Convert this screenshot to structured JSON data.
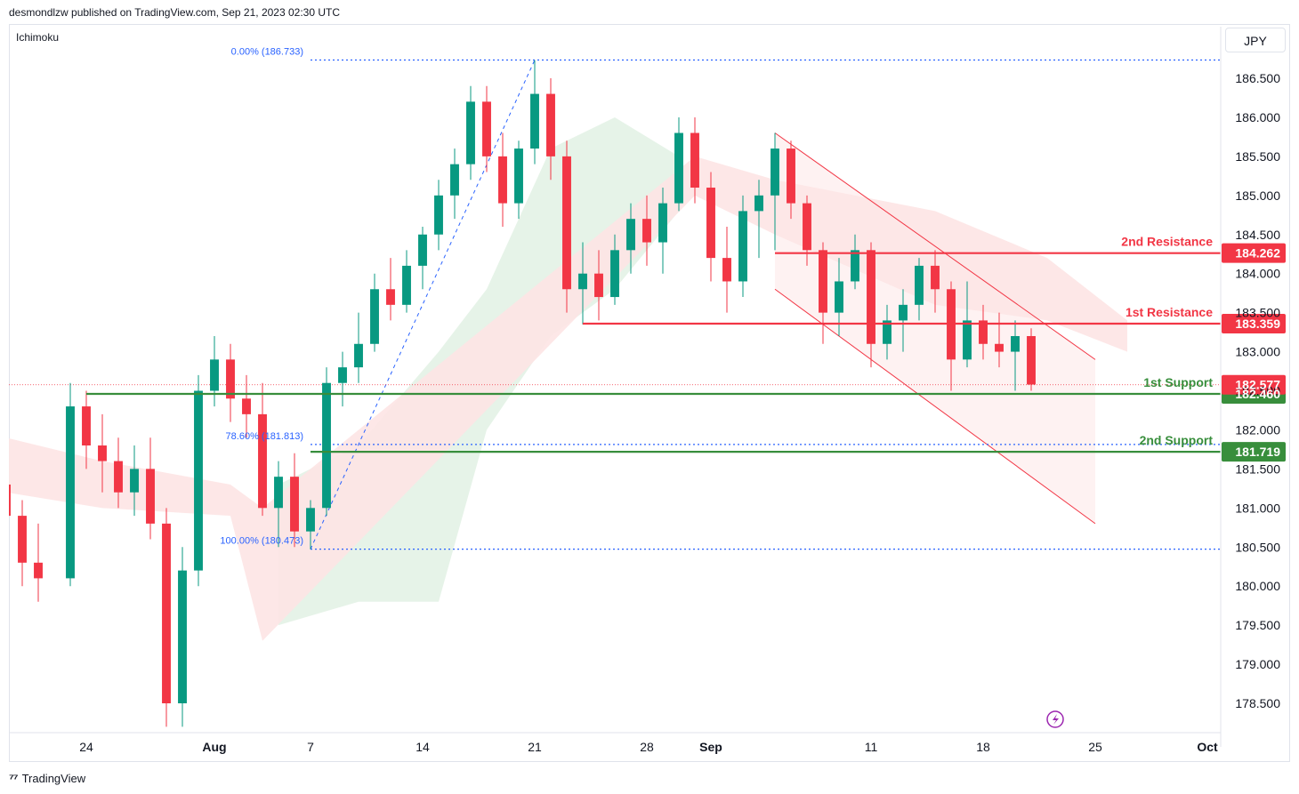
{
  "header": {
    "attribution": "desmondlzw published on TradingView.com, Sep 21, 2023 02:30 UTC"
  },
  "footer": {
    "brand": "TradingView",
    "logo": "tv-logo-icon"
  },
  "indicator_label": "Ichimoku",
  "currency": "JPY",
  "colors": {
    "up": "#089981",
    "down": "#f23645",
    "resistance": "#f23645",
    "support": "#388e3c",
    "fib": "#2962ff",
    "cloud_bull": "#e3f2e6",
    "cloud_bear": "#fde4e4",
    "channel": "#f23645"
  },
  "chart_data": {
    "type": "candlestick",
    "ylim": [
      178.0,
      186.9
    ],
    "y_ticks": [
      "186.500",
      "186.000",
      "185.500",
      "185.000",
      "184.500",
      "184.000",
      "183.500",
      "183.000",
      "182.500",
      "182.000",
      "181.500",
      "181.000",
      "180.500",
      "180.000",
      "179.500",
      "179.000",
      "178.500"
    ],
    "x_ticks": [
      {
        "label": "24",
        "date": "2023-07-24"
      },
      {
        "label": "Aug",
        "date": "2023-08-01"
      },
      {
        "label": "7",
        "date": "2023-08-07"
      },
      {
        "label": "14",
        "date": "2023-08-14"
      },
      {
        "label": "21",
        "date": "2023-08-21"
      },
      {
        "label": "28",
        "date": "2023-08-28"
      },
      {
        "label": "Sep",
        "date": "2023-09-01"
      },
      {
        "label": "11",
        "date": "2023-09-11"
      },
      {
        "label": "18",
        "date": "2023-09-18"
      },
      {
        "label": "25",
        "date": "2023-09-25"
      },
      {
        "label": "Oct",
        "date": "2023-10-02"
      }
    ],
    "x_range": [
      "2023-07-19",
      "2023-10-02"
    ],
    "last_price": {
      "value": 182.577,
      "label": "182.577"
    },
    "levels": [
      {
        "name": "2nd Resistance",
        "value": 184.262,
        "label": "184.262",
        "kind": "resistance",
        "from": "2023-09-05"
      },
      {
        "name": "1st Resistance",
        "value": 183.359,
        "label": "183.359",
        "kind": "resistance",
        "from": "2023-08-24"
      },
      {
        "name": "1st Support",
        "value": 182.46,
        "label": "182.460",
        "kind": "support",
        "from": "2023-07-24"
      },
      {
        "name": "2nd Support",
        "value": 181.719,
        "label": "181.719",
        "kind": "support",
        "from": "2023-08-07"
      }
    ],
    "fibonacci": [
      {
        "label": "0.00% (186.733)",
        "value": 186.733
      },
      {
        "label": "78.60% (181.813)",
        "value": 181.813
      },
      {
        "label": "100.00% (180.473)",
        "value": 180.473
      }
    ],
    "fib_anchor": {
      "low": {
        "date": "2023-08-07",
        "value": 180.473
      },
      "high": {
        "date": "2023-08-21",
        "value": 186.733
      }
    },
    "channel": {
      "upper": [
        {
          "date": "2023-09-05",
          "value": 185.8
        },
        {
          "date": "2023-09-25",
          "value": 182.9
        }
      ],
      "lower": [
        {
          "date": "2023-09-05",
          "value": 183.8
        },
        {
          "date": "2023-09-25",
          "value": 180.8
        }
      ]
    },
    "candles": [
      [
        "2023-07-19",
        181.3,
        181.9,
        180.8,
        180.9
      ],
      [
        "2023-07-20",
        180.9,
        181.1,
        180.0,
        180.3
      ],
      [
        "2023-07-21",
        180.3,
        180.8,
        179.8,
        180.1
      ],
      [
        "2023-07-23",
        180.1,
        182.6,
        180.0,
        182.3
      ],
      [
        "2023-07-24",
        182.3,
        182.5,
        181.5,
        181.8
      ],
      [
        "2023-07-25",
        181.8,
        182.2,
        181.2,
        181.6
      ],
      [
        "2023-07-26",
        181.6,
        181.9,
        181.0,
        181.2
      ],
      [
        "2023-07-27",
        181.2,
        181.8,
        180.9,
        181.5
      ],
      [
        "2023-07-28",
        181.5,
        181.9,
        180.6,
        180.8
      ],
      [
        "2023-07-29",
        180.8,
        181.0,
        178.2,
        178.5
      ],
      [
        "2023-07-30",
        178.5,
        180.5,
        178.2,
        180.2
      ],
      [
        "2023-07-31",
        180.2,
        182.7,
        180.0,
        182.5
      ],
      [
        "2023-08-01",
        182.5,
        183.2,
        182.3,
        182.9
      ],
      [
        "2023-08-02",
        182.9,
        183.1,
        182.1,
        182.4
      ],
      [
        "2023-08-03",
        182.4,
        182.7,
        181.9,
        182.2
      ],
      [
        "2023-08-04",
        182.2,
        182.6,
        180.9,
        181.0
      ],
      [
        "2023-08-05",
        181.0,
        181.6,
        180.5,
        181.4
      ],
      [
        "2023-08-06",
        181.4,
        181.7,
        180.5,
        180.7
      ],
      [
        "2023-08-07",
        180.7,
        181.1,
        180.47,
        181.0
      ],
      [
        "2023-08-08",
        181.0,
        182.8,
        180.9,
        182.6
      ],
      [
        "2023-08-09",
        182.6,
        183.0,
        182.3,
        182.8
      ],
      [
        "2023-08-10",
        182.8,
        183.5,
        182.6,
        183.1
      ],
      [
        "2023-08-11",
        183.1,
        184.0,
        183.0,
        183.8
      ],
      [
        "2023-08-12",
        183.8,
        184.2,
        183.4,
        183.6
      ],
      [
        "2023-08-13",
        183.6,
        184.3,
        183.5,
        184.1
      ],
      [
        "2023-08-14",
        184.1,
        184.6,
        183.8,
        184.5
      ],
      [
        "2023-08-15",
        184.5,
        185.2,
        184.3,
        185.0
      ],
      [
        "2023-08-16",
        185.0,
        185.6,
        184.7,
        185.4
      ],
      [
        "2023-08-17",
        185.4,
        186.4,
        185.2,
        186.2
      ],
      [
        "2023-08-18",
        186.2,
        186.4,
        185.3,
        185.5
      ],
      [
        "2023-08-19",
        185.5,
        185.8,
        184.6,
        184.9
      ],
      [
        "2023-08-20",
        184.9,
        185.7,
        184.7,
        185.6
      ],
      [
        "2023-08-21",
        185.6,
        186.73,
        185.4,
        186.3
      ],
      [
        "2023-08-22",
        186.3,
        186.5,
        185.2,
        185.5
      ],
      [
        "2023-08-23",
        185.5,
        185.7,
        183.5,
        183.8
      ],
      [
        "2023-08-24",
        183.8,
        184.4,
        183.35,
        184.0
      ],
      [
        "2023-08-25",
        184.0,
        184.3,
        183.4,
        183.7
      ],
      [
        "2023-08-26",
        183.7,
        184.5,
        183.6,
        184.3
      ],
      [
        "2023-08-27",
        184.3,
        184.9,
        184.0,
        184.7
      ],
      [
        "2023-08-28",
        184.7,
        185.0,
        184.1,
        184.4
      ],
      [
        "2023-08-29",
        184.4,
        185.1,
        184.0,
        184.9
      ],
      [
        "2023-08-30",
        184.9,
        186.0,
        184.8,
        185.8
      ],
      [
        "2023-08-31",
        185.8,
        186.0,
        184.9,
        185.1
      ],
      [
        "2023-09-01",
        185.1,
        185.3,
        183.9,
        184.2
      ],
      [
        "2023-09-02",
        184.2,
        184.6,
        183.5,
        183.9
      ],
      [
        "2023-09-03",
        183.9,
        185.0,
        183.7,
        184.8
      ],
      [
        "2023-09-04",
        184.8,
        185.2,
        184.2,
        185.0
      ],
      [
        "2023-09-05",
        185.0,
        185.8,
        184.3,
        185.6
      ],
      [
        "2023-09-06",
        185.6,
        185.7,
        184.7,
        184.9
      ],
      [
        "2023-09-07",
        184.9,
        185.0,
        184.1,
        184.3
      ],
      [
        "2023-09-08",
        184.3,
        184.4,
        183.1,
        183.5
      ],
      [
        "2023-09-09",
        183.5,
        184.2,
        183.2,
        183.9
      ],
      [
        "2023-09-10",
        183.9,
        184.5,
        183.8,
        184.3
      ],
      [
        "2023-09-11",
        184.3,
        184.4,
        182.8,
        183.1
      ],
      [
        "2023-09-12",
        183.1,
        183.6,
        182.9,
        183.4
      ],
      [
        "2023-09-13",
        183.4,
        183.8,
        183.0,
        183.6
      ],
      [
        "2023-09-14",
        183.6,
        184.2,
        183.4,
        184.1
      ],
      [
        "2023-09-15",
        184.1,
        184.3,
        183.5,
        183.8
      ],
      [
        "2023-09-16",
        183.8,
        183.9,
        182.5,
        182.9
      ],
      [
        "2023-09-17",
        182.9,
        183.9,
        182.8,
        183.4
      ],
      [
        "2023-09-18",
        183.4,
        183.6,
        182.9,
        183.1
      ],
      [
        "2023-09-19",
        183.1,
        183.5,
        182.8,
        183.0
      ],
      [
        "2023-09-20",
        183.0,
        183.4,
        182.5,
        183.2
      ],
      [
        "2023-09-21",
        183.2,
        183.3,
        182.5,
        182.58
      ]
    ],
    "cloud": {
      "bull": [
        [
          "2023-08-05",
          179.5,
          181.3
        ],
        [
          "2023-08-10",
          179.8,
          181.8
        ],
        [
          "2023-08-15",
          179.8,
          183.0
        ],
        [
          "2023-08-18",
          182.0,
          183.8
        ],
        [
          "2023-08-22",
          183.2,
          185.6
        ],
        [
          "2023-08-26",
          183.8,
          186.0
        ],
        [
          "2023-08-30",
          184.8,
          185.5
        ]
      ],
      "bear": [
        [
          "2023-07-19",
          181.2,
          181.9
        ],
        [
          "2023-07-25",
          181.0,
          181.6
        ],
        [
          "2023-08-02",
          180.9,
          181.3
        ],
        [
          "2023-08-04",
          179.3,
          181.0
        ],
        [
          "2023-08-31",
          185.0,
          185.5
        ],
        [
          "2023-09-05",
          184.5,
          185.2
        ],
        [
          "2023-09-15",
          183.6,
          184.8
        ],
        [
          "2023-09-22",
          183.4,
          184.2
        ],
        [
          "2023-09-27",
          183.0,
          183.4
        ]
      ]
    }
  }
}
